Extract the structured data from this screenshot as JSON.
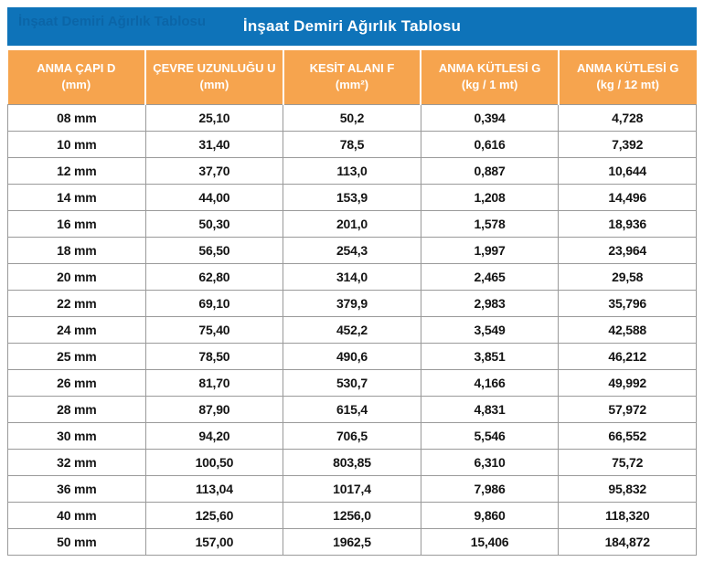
{
  "title_bar": {
    "title": "İnşaat Demiri Ağırlık Tablosu",
    "ghost_title": "İnşaat Demiri Ağırlık Tablosu"
  },
  "colors": {
    "title_bar_bg": "#0E73B9",
    "title_text": "#FFFFFF",
    "header_bg": "#F6A44E",
    "header_text": "#FFFFFF",
    "body_text": "#141414",
    "grid_line": "#9A9A9A",
    "header_separator": "#FFFFFF"
  },
  "chart_data": {
    "type": "table",
    "title": "İnşaat Demiri Ağırlık Tablosu",
    "columns": [
      {
        "label": "ANMA ÇAPI D",
        "unit": "(mm)"
      },
      {
        "label": "ÇEVRE UZUNLUĞU U",
        "unit": "(mm)"
      },
      {
        "label": "KESİT ALANI F",
        "unit": "(mm²)"
      },
      {
        "label": "ANMA KÜTLESİ G",
        "unit": "(kg / 1 mt)"
      },
      {
        "label": "ANMA KÜTLESİ G",
        "unit": "(kg / 12 mt)"
      }
    ],
    "rows": [
      [
        "08 mm",
        "25,10",
        "50,2",
        "0,394",
        "4,728"
      ],
      [
        "10 mm",
        "31,40",
        "78,5",
        "0,616",
        "7,392"
      ],
      [
        "12 mm",
        "37,70",
        "113,0",
        "0,887",
        "10,644"
      ],
      [
        "14 mm",
        "44,00",
        "153,9",
        "1,208",
        "14,496"
      ],
      [
        "16 mm",
        "50,30",
        "201,0",
        "1,578",
        "18,936"
      ],
      [
        "18 mm",
        "56,50",
        "254,3",
        "1,997",
        "23,964"
      ],
      [
        "20 mm",
        "62,80",
        "314,0",
        "2,465",
        "29,58"
      ],
      [
        "22 mm",
        "69,10",
        "379,9",
        "2,983",
        "35,796"
      ],
      [
        "24 mm",
        "75,40",
        "452,2",
        "3,549",
        "42,588"
      ],
      [
        "25 mm",
        "78,50",
        "490,6",
        "3,851",
        "46,212"
      ],
      [
        "26 mm",
        "81,70",
        "530,7",
        "4,166",
        "49,992"
      ],
      [
        "28 mm",
        "87,90",
        "615,4",
        "4,831",
        "57,972"
      ],
      [
        "30 mm",
        "94,20",
        "706,5",
        "5,546",
        "66,552"
      ],
      [
        "32 mm",
        "100,50",
        "803,85",
        "6,310",
        "75,72"
      ],
      [
        "36 mm",
        "113,04",
        "1017,4",
        "7,986",
        "95,832"
      ],
      [
        "40 mm",
        "125,60",
        "1256,0",
        "9,860",
        "118,320"
      ],
      [
        "50 mm",
        "157,00",
        "1962,5",
        "15,406",
        "184,872"
      ]
    ]
  }
}
